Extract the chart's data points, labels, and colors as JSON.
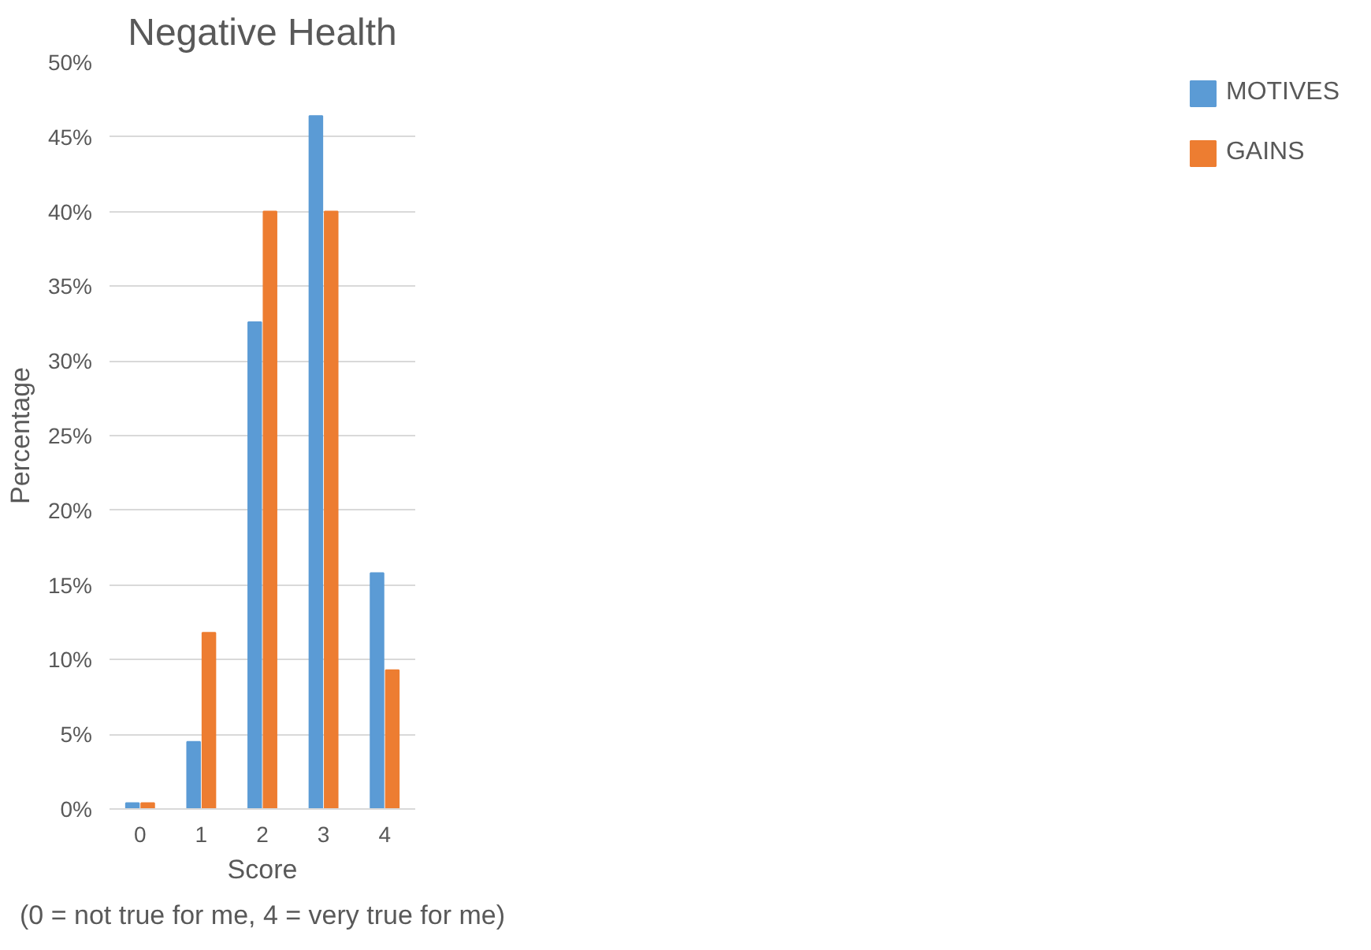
{
  "chart_data": {
    "type": "bar",
    "title": "Negative Health",
    "xlabel": "Score",
    "ylabel": "Percentage",
    "annotations": [
      "(0 = not true for me, 4 = very true for me)"
    ],
    "categories": [
      "0",
      "1",
      "2",
      "3",
      "4"
    ],
    "series": [
      {
        "name": "MOTIVES",
        "color": "#5b9bd5",
        "values": [
          0.4,
          4.5,
          32.6,
          46.4,
          15.8
        ]
      },
      {
        "name": "GAINS",
        "color": "#ed7d31",
        "values": [
          0.4,
          11.8,
          40,
          40,
          9.3
        ]
      }
    ],
    "ylim": [
      0,
      50
    ],
    "yticks": [
      {
        "value": 0,
        "label": "0%"
      },
      {
        "value": 5,
        "label": "5%"
      },
      {
        "value": 10,
        "label": "10%"
      },
      {
        "value": 15,
        "label": "15%"
      },
      {
        "value": 20,
        "label": "20%"
      },
      {
        "value": 25,
        "label": "25%"
      },
      {
        "value": 30,
        "label": "30%"
      },
      {
        "value": 35,
        "label": "35%"
      },
      {
        "value": 40,
        "label": "40%"
      },
      {
        "value": 45,
        "label": "45%"
      },
      {
        "value": 50,
        "label": "50%"
      }
    ],
    "grid": "y",
    "legend": "right"
  }
}
